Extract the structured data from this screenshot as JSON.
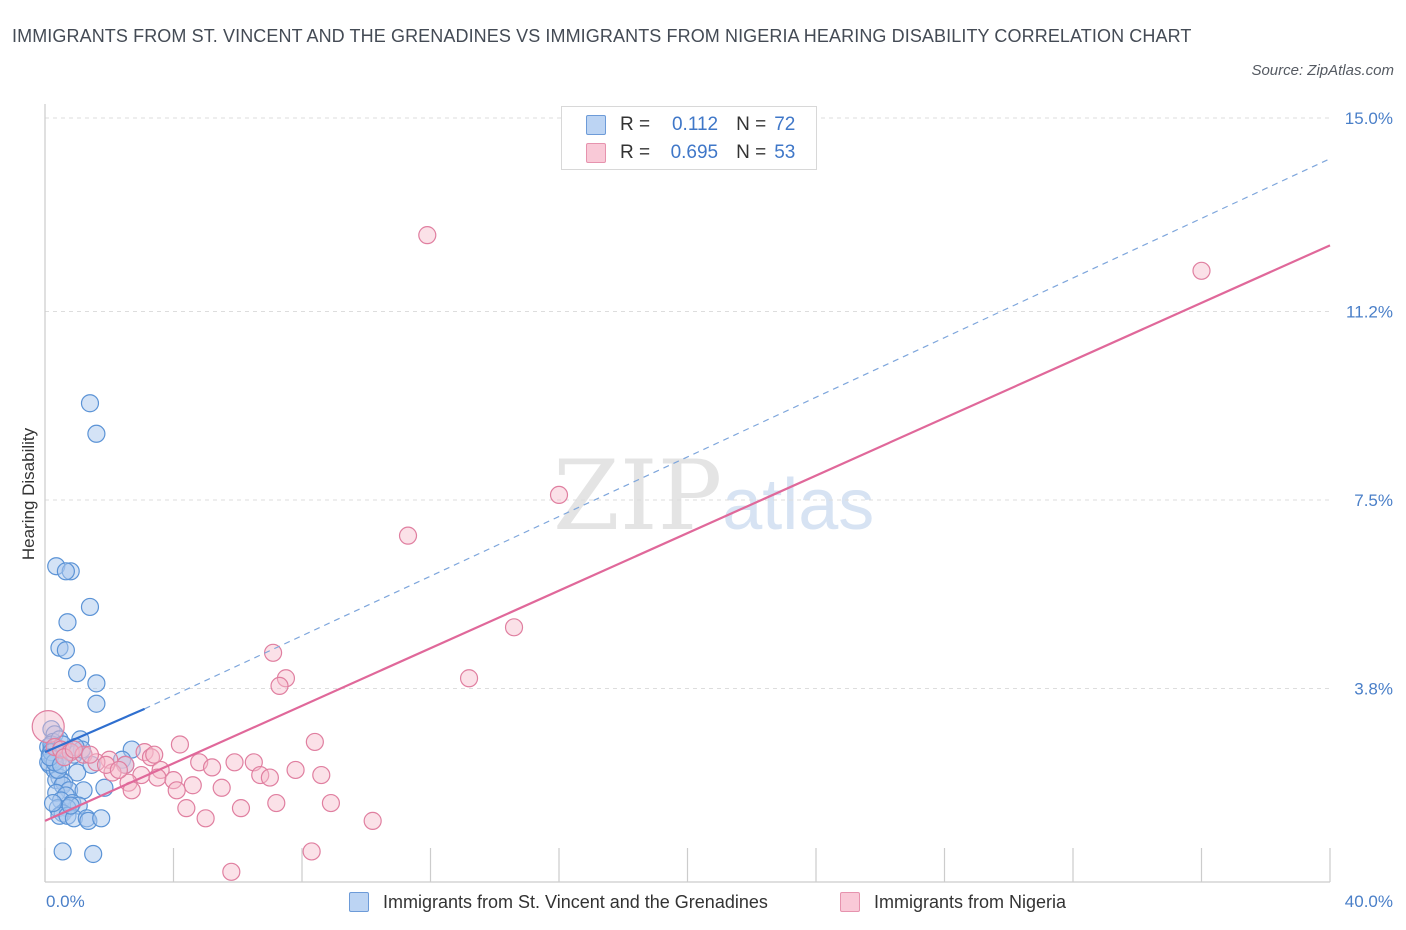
{
  "title": "IMMIGRANTS FROM ST. VINCENT AND THE GRENADINES VS IMMIGRANTS FROM NIGERIA HEARING DISABILITY CORRELATION CHART",
  "source": "Source: ZipAtlas.com",
  "watermark": {
    "zip": "ZIP",
    "atlas": "atlas"
  },
  "legend": {
    "r_label": "R =",
    "n_label": "N =",
    "rows": [
      {
        "r": "0.112",
        "n": "72"
      },
      {
        "r": "0.695",
        "n": "53"
      }
    ]
  },
  "colors": {
    "blue_fill": "#a9c8ee",
    "blue_stroke": "#5b93d6",
    "blue_line": "#2f6fcf",
    "pink_fill": "#f7bccd",
    "pink_stroke": "#e07fa0",
    "pink_line": "#e0689a",
    "grid": "#dddddd",
    "tick_label": "#4a7fc8"
  },
  "chart_data": {
    "type": "scatter",
    "title": "IMMIGRANTS FROM ST. VINCENT AND THE GRENADINES VS IMMIGRANTS FROM NIGERIA HEARING DISABILITY CORRELATION CHART",
    "xlabel": "",
    "ylabel": "Hearing Disability",
    "xlim": [
      0,
      40
    ],
    "ylim": [
      0,
      15
    ],
    "x_tick_labels": [
      "0.0%",
      "40.0%"
    ],
    "y_ticks": [
      3.8,
      7.5,
      11.2,
      15.0
    ],
    "y_tick_labels": [
      "3.8%",
      "7.5%",
      "11.2%",
      "15.0%"
    ],
    "grid": true,
    "legend_position": "top-center",
    "series": [
      {
        "name": "Immigrants from St. Vincent and the Grenadines",
        "r": 0.112,
        "n": 72,
        "trend": {
          "x0": 0,
          "y0": 2.55,
          "x1": 3.1,
          "y1": 3.4,
          "style": "solid"
        },
        "trend_extension": {
          "x0": 3.1,
          "y0": 3.4,
          "x1": 40,
          "y1": 14.2,
          "style": "dashed"
        },
        "points": [
          [
            1.4,
            9.4
          ],
          [
            1.6,
            8.8
          ],
          [
            0.35,
            6.2
          ],
          [
            0.8,
            6.1
          ],
          [
            0.65,
            6.1
          ],
          [
            1.4,
            5.4
          ],
          [
            0.7,
            5.1
          ],
          [
            0.45,
            4.6
          ],
          [
            0.65,
            4.55
          ],
          [
            1.0,
            4.1
          ],
          [
            1.6,
            3.9
          ],
          [
            1.6,
            3.5
          ],
          [
            0.2,
            3.0
          ],
          [
            0.3,
            2.9
          ],
          [
            0.25,
            2.75
          ],
          [
            1.1,
            2.8
          ],
          [
            0.1,
            2.65
          ],
          [
            0.2,
            2.6
          ],
          [
            0.4,
            2.6
          ],
          [
            0.15,
            2.5
          ],
          [
            0.3,
            2.5
          ],
          [
            0.5,
            2.55
          ],
          [
            0.7,
            2.55
          ],
          [
            1.2,
            2.5
          ],
          [
            2.7,
            2.6
          ],
          [
            2.4,
            2.4
          ],
          [
            0.4,
            2.4
          ],
          [
            0.15,
            2.3
          ],
          [
            0.3,
            2.2
          ],
          [
            1.0,
            2.15
          ],
          [
            2.5,
            2.3
          ],
          [
            1.45,
            2.3
          ],
          [
            0.45,
            2.05
          ],
          [
            0.35,
            2.0
          ],
          [
            0.6,
            1.95
          ],
          [
            0.55,
            1.9
          ],
          [
            0.75,
            1.8
          ],
          [
            1.2,
            1.8
          ],
          [
            0.35,
            1.75
          ],
          [
            0.65,
            1.7
          ],
          [
            0.5,
            1.6
          ],
          [
            0.85,
            1.55
          ],
          [
            1.05,
            1.5
          ],
          [
            0.4,
            1.45
          ],
          [
            0.7,
            1.45
          ],
          [
            0.55,
            1.35
          ],
          [
            0.45,
            1.3
          ],
          [
            0.7,
            1.3
          ],
          [
            0.9,
            1.25
          ],
          [
            1.3,
            1.25
          ],
          [
            1.35,
            1.2
          ],
          [
            1.75,
            1.25
          ],
          [
            0.55,
            0.6
          ],
          [
            1.5,
            0.55
          ],
          [
            0.2,
            2.7
          ],
          [
            0.35,
            2.65
          ],
          [
            0.6,
            2.45
          ],
          [
            0.25,
            2.4
          ],
          [
            0.1,
            2.35
          ],
          [
            0.45,
            2.8
          ],
          [
            0.9,
            2.5
          ],
          [
            1.15,
            2.6
          ],
          [
            1.85,
            1.85
          ],
          [
            0.25,
            1.55
          ],
          [
            0.8,
            1.5
          ],
          [
            0.95,
            2.65
          ],
          [
            0.4,
            2.2
          ],
          [
            0.2,
            2.55
          ],
          [
            0.55,
            2.7
          ],
          [
            0.3,
            2.35
          ],
          [
            0.15,
            2.45
          ],
          [
            0.5,
            2.3
          ]
        ]
      },
      {
        "name": "Immigrants from Nigeria",
        "r": 0.695,
        "n": 53,
        "trend": {
          "x0": 0,
          "y0": 1.2,
          "x1": 40,
          "y1": 12.5,
          "style": "solid"
        },
        "points": [
          [
            11.9,
            12.7
          ],
          [
            36.0,
            12.0
          ],
          [
            16.0,
            7.6
          ],
          [
            11.3,
            6.8
          ],
          [
            14.6,
            5.0
          ],
          [
            7.1,
            4.5
          ],
          [
            7.5,
            4.0
          ],
          [
            7.3,
            3.85
          ],
          [
            13.2,
            4.0
          ],
          [
            0.1,
            3.05
          ],
          [
            8.4,
            2.75
          ],
          [
            4.2,
            2.7
          ],
          [
            0.3,
            2.65
          ],
          [
            0.5,
            2.6
          ],
          [
            0.8,
            2.55
          ],
          [
            1.2,
            2.5
          ],
          [
            3.1,
            2.55
          ],
          [
            3.3,
            2.45
          ],
          [
            2.0,
            2.4
          ],
          [
            1.6,
            2.35
          ],
          [
            4.8,
            2.35
          ],
          [
            5.9,
            2.35
          ],
          [
            6.5,
            2.35
          ],
          [
            2.5,
            2.3
          ],
          [
            3.6,
            2.2
          ],
          [
            5.2,
            2.25
          ],
          [
            7.8,
            2.2
          ],
          [
            2.1,
            2.15
          ],
          [
            3.0,
            2.1
          ],
          [
            6.7,
            2.1
          ],
          [
            8.6,
            2.1
          ],
          [
            7.0,
            2.05
          ],
          [
            3.5,
            2.05
          ],
          [
            4.0,
            2.0
          ],
          [
            2.6,
            1.95
          ],
          [
            4.6,
            1.9
          ],
          [
            5.5,
            1.85
          ],
          [
            2.7,
            1.8
          ],
          [
            4.1,
            1.8
          ],
          [
            7.2,
            1.55
          ],
          [
            8.9,
            1.55
          ],
          [
            4.4,
            1.45
          ],
          [
            6.1,
            1.45
          ],
          [
            5.0,
            1.25
          ],
          [
            10.2,
            1.2
          ],
          [
            8.3,
            0.6
          ],
          [
            5.8,
            0.2
          ],
          [
            1.4,
            2.5
          ],
          [
            0.6,
            2.45
          ],
          [
            3.4,
            2.5
          ],
          [
            1.9,
            2.3
          ],
          [
            2.3,
            2.2
          ],
          [
            0.9,
            2.6
          ]
        ]
      }
    ]
  }
}
